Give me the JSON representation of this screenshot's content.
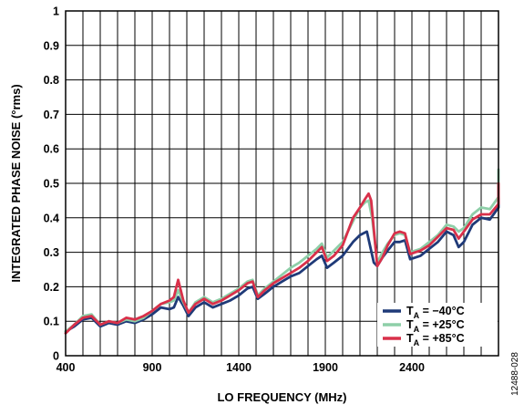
{
  "figure_id": "12488-028",
  "chart_data": {
    "type": "line",
    "title": "",
    "xlabel": "LO FREQUENCY (MHz)",
    "ylabel": "INTEGRATED PHASE NOISE (°rms)",
    "xlim": [
      400,
      2900
    ],
    "ylim": [
      0,
      1
    ],
    "x_ticks": [
      400,
      900,
      1400,
      1900,
      2400
    ],
    "y_ticks": [
      0,
      0.1,
      0.2,
      0.3,
      0.4,
      0.5,
      0.6,
      0.7,
      0.8,
      0.9,
      1
    ],
    "y_tick_labels": [
      "0",
      "0.1",
      "0.2",
      "0.3",
      "0.4",
      "0.5",
      "0.6",
      "0.7",
      "0.8",
      "0.9",
      "1"
    ],
    "x_gridlines": [
      400,
      500,
      600,
      700,
      800,
      900,
      1000,
      1100,
      1200,
      1300,
      1400,
      1500,
      1600,
      1700,
      1800,
      1900,
      2000,
      2100,
      2200,
      2300,
      2400,
      2500,
      2600,
      2700,
      2800,
      2900
    ],
    "y_gridlines": [
      0,
      0.1,
      0.2,
      0.3,
      0.4,
      0.5,
      0.6,
      0.7,
      0.8,
      0.9,
      1
    ],
    "grid": true,
    "legend_position": "bottom-right",
    "series": [
      {
        "name": "−40°C",
        "color": "#1f3a78",
        "points": [
          [
            400,
            0.07
          ],
          [
            450,
            0.085
          ],
          [
            500,
            0.105
          ],
          [
            550,
            0.11
          ],
          [
            600,
            0.085
          ],
          [
            650,
            0.095
          ],
          [
            700,
            0.09
          ],
          [
            750,
            0.1
          ],
          [
            800,
            0.095
          ],
          [
            850,
            0.105
          ],
          [
            900,
            0.12
          ],
          [
            950,
            0.14
          ],
          [
            1000,
            0.135
          ],
          [
            1025,
            0.14
          ],
          [
            1050,
            0.17
          ],
          [
            1080,
            0.145
          ],
          [
            1110,
            0.115
          ],
          [
            1150,
            0.14
          ],
          [
            1200,
            0.155
          ],
          [
            1250,
            0.14
          ],
          [
            1300,
            0.15
          ],
          [
            1350,
            0.16
          ],
          [
            1400,
            0.175
          ],
          [
            1450,
            0.195
          ],
          [
            1480,
            0.2
          ],
          [
            1510,
            0.165
          ],
          [
            1550,
            0.18
          ],
          [
            1600,
            0.2
          ],
          [
            1650,
            0.215
          ],
          [
            1700,
            0.23
          ],
          [
            1750,
            0.24
          ],
          [
            1800,
            0.26
          ],
          [
            1850,
            0.28
          ],
          [
            1880,
            0.29
          ],
          [
            1910,
            0.255
          ],
          [
            1950,
            0.27
          ],
          [
            2000,
            0.29
          ],
          [
            2030,
            0.31
          ],
          [
            2060,
            0.33
          ],
          [
            2100,
            0.35
          ],
          [
            2140,
            0.36
          ],
          [
            2180,
            0.27
          ],
          [
            2200,
            0.26
          ],
          [
            2230,
            0.285
          ],
          [
            2260,
            0.305
          ],
          [
            2300,
            0.33
          ],
          [
            2330,
            0.33
          ],
          [
            2360,
            0.335
          ],
          [
            2390,
            0.28
          ],
          [
            2420,
            0.285
          ],
          [
            2450,
            0.29
          ],
          [
            2500,
            0.31
          ],
          [
            2550,
            0.33
          ],
          [
            2600,
            0.36
          ],
          [
            2640,
            0.35
          ],
          [
            2670,
            0.315
          ],
          [
            2700,
            0.33
          ],
          [
            2750,
            0.38
          ],
          [
            2800,
            0.4
          ],
          [
            2850,
            0.395
          ],
          [
            2900,
            0.43
          ],
          [
            2950,
            0.45
          ],
          [
            2975,
            0.46
          ]
        ]
      },
      {
        "name": "+25°C",
        "color": "#8ecfa8",
        "points": [
          [
            400,
            0.07
          ],
          [
            450,
            0.09
          ],
          [
            500,
            0.115
          ],
          [
            550,
            0.12
          ],
          [
            600,
            0.09
          ],
          [
            650,
            0.1
          ],
          [
            700,
            0.095
          ],
          [
            750,
            0.105
          ],
          [
            800,
            0.1
          ],
          [
            850,
            0.11
          ],
          [
            900,
            0.13
          ],
          [
            950,
            0.15
          ],
          [
            1000,
            0.155
          ],
          [
            1025,
            0.16
          ],
          [
            1050,
            0.19
          ],
          [
            1080,
            0.155
          ],
          [
            1110,
            0.125
          ],
          [
            1150,
            0.155
          ],
          [
            1200,
            0.17
          ],
          [
            1250,
            0.155
          ],
          [
            1300,
            0.165
          ],
          [
            1350,
            0.18
          ],
          [
            1400,
            0.195
          ],
          [
            1450,
            0.215
          ],
          [
            1480,
            0.22
          ],
          [
            1510,
            0.175
          ],
          [
            1550,
            0.195
          ],
          [
            1600,
            0.215
          ],
          [
            1650,
            0.235
          ],
          [
            1700,
            0.255
          ],
          [
            1750,
            0.27
          ],
          [
            1800,
            0.29
          ],
          [
            1850,
            0.31
          ],
          [
            1880,
            0.325
          ],
          [
            1910,
            0.285
          ],
          [
            1950,
            0.305
          ],
          [
            2000,
            0.33
          ],
          [
            2030,
            0.36
          ],
          [
            2060,
            0.39
          ],
          [
            2100,
            0.43
          ],
          [
            2130,
            0.445
          ],
          [
            2150,
            0.45
          ],
          [
            2170,
            0.4
          ],
          [
            2200,
            0.27
          ],
          [
            2230,
            0.3
          ],
          [
            2260,
            0.325
          ],
          [
            2300,
            0.35
          ],
          [
            2330,
            0.355
          ],
          [
            2360,
            0.35
          ],
          [
            2390,
            0.3
          ],
          [
            2420,
            0.305
          ],
          [
            2450,
            0.31
          ],
          [
            2500,
            0.33
          ],
          [
            2550,
            0.35
          ],
          [
            2600,
            0.38
          ],
          [
            2640,
            0.375
          ],
          [
            2670,
            0.36
          ],
          [
            2700,
            0.37
          ],
          [
            2750,
            0.41
          ],
          [
            2800,
            0.43
          ],
          [
            2850,
            0.425
          ],
          [
            2900,
            0.46
          ],
          [
            2950,
            0.5
          ],
          [
            2975,
            0.54
          ]
        ]
      },
      {
        "name": "+85°C",
        "color": "#d9304a",
        "points": [
          [
            400,
            0.065
          ],
          [
            450,
            0.09
          ],
          [
            500,
            0.11
          ],
          [
            550,
            0.115
          ],
          [
            600,
            0.09
          ],
          [
            650,
            0.1
          ],
          [
            700,
            0.095
          ],
          [
            750,
            0.11
          ],
          [
            800,
            0.105
          ],
          [
            850,
            0.115
          ],
          [
            900,
            0.13
          ],
          [
            950,
            0.15
          ],
          [
            1000,
            0.16
          ],
          [
            1025,
            0.17
          ],
          [
            1050,
            0.22
          ],
          [
            1080,
            0.16
          ],
          [
            1110,
            0.125
          ],
          [
            1150,
            0.15
          ],
          [
            1200,
            0.165
          ],
          [
            1250,
            0.15
          ],
          [
            1300,
            0.16
          ],
          [
            1350,
            0.175
          ],
          [
            1400,
            0.19
          ],
          [
            1450,
            0.21
          ],
          [
            1480,
            0.215
          ],
          [
            1510,
            0.17
          ],
          [
            1550,
            0.19
          ],
          [
            1600,
            0.21
          ],
          [
            1650,
            0.225
          ],
          [
            1700,
            0.24
          ],
          [
            1750,
            0.255
          ],
          [
            1800,
            0.275
          ],
          [
            1850,
            0.3
          ],
          [
            1880,
            0.315
          ],
          [
            1910,
            0.275
          ],
          [
            1950,
            0.29
          ],
          [
            2000,
            0.32
          ],
          [
            2030,
            0.36
          ],
          [
            2060,
            0.4
          ],
          [
            2100,
            0.43
          ],
          [
            2130,
            0.455
          ],
          [
            2150,
            0.47
          ],
          [
            2165,
            0.45
          ],
          [
            2200,
            0.26
          ],
          [
            2230,
            0.285
          ],
          [
            2260,
            0.32
          ],
          [
            2300,
            0.355
          ],
          [
            2330,
            0.36
          ],
          [
            2360,
            0.355
          ],
          [
            2390,
            0.295
          ],
          [
            2420,
            0.3
          ],
          [
            2450,
            0.305
          ],
          [
            2500,
            0.32
          ],
          [
            2550,
            0.345
          ],
          [
            2600,
            0.37
          ],
          [
            2640,
            0.365
          ],
          [
            2670,
            0.34
          ],
          [
            2700,
            0.36
          ],
          [
            2750,
            0.395
          ],
          [
            2800,
            0.41
          ],
          [
            2850,
            0.41
          ],
          [
            2900,
            0.44
          ],
          [
            2950,
            0.47
          ],
          [
            2975,
            0.5
          ]
        ]
      }
    ],
    "legend": [
      {
        "prefix": "T",
        "subscript": "A",
        "suffix": " = −40°C",
        "color": "#1f3a78"
      },
      {
        "prefix": "T",
        "subscript": "A",
        "suffix": " = +25°C",
        "color": "#8ecfa8"
      },
      {
        "prefix": "T",
        "subscript": "A",
        "suffix": " = +85°C",
        "color": "#d9304a"
      }
    ]
  }
}
